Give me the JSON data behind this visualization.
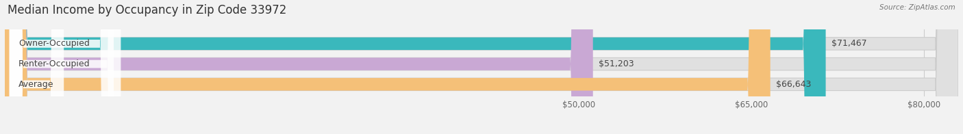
{
  "title": "Median Income by Occupancy in Zip Code 33972",
  "source": "Source: ZipAtlas.com",
  "categories": [
    "Owner-Occupied",
    "Renter-Occupied",
    "Average"
  ],
  "values": [
    71467,
    51203,
    66643
  ],
  "bar_colors": [
    "#3ab8bc",
    "#c9a8d4",
    "#f5c078"
  ],
  "bar_labels": [
    "$71,467",
    "$51,203",
    "$66,643"
  ],
  "xmin": 0,
  "xmax": 83000,
  "xticks": [
    50000,
    65000,
    80000
  ],
  "xtick_labels": [
    "$50,000",
    "$65,000",
    "$80,000"
  ],
  "background_color": "#f2f2f2",
  "bar_bg_color": "#e0e0e0",
  "title_fontsize": 12,
  "label_fontsize": 9,
  "bar_height": 0.62
}
